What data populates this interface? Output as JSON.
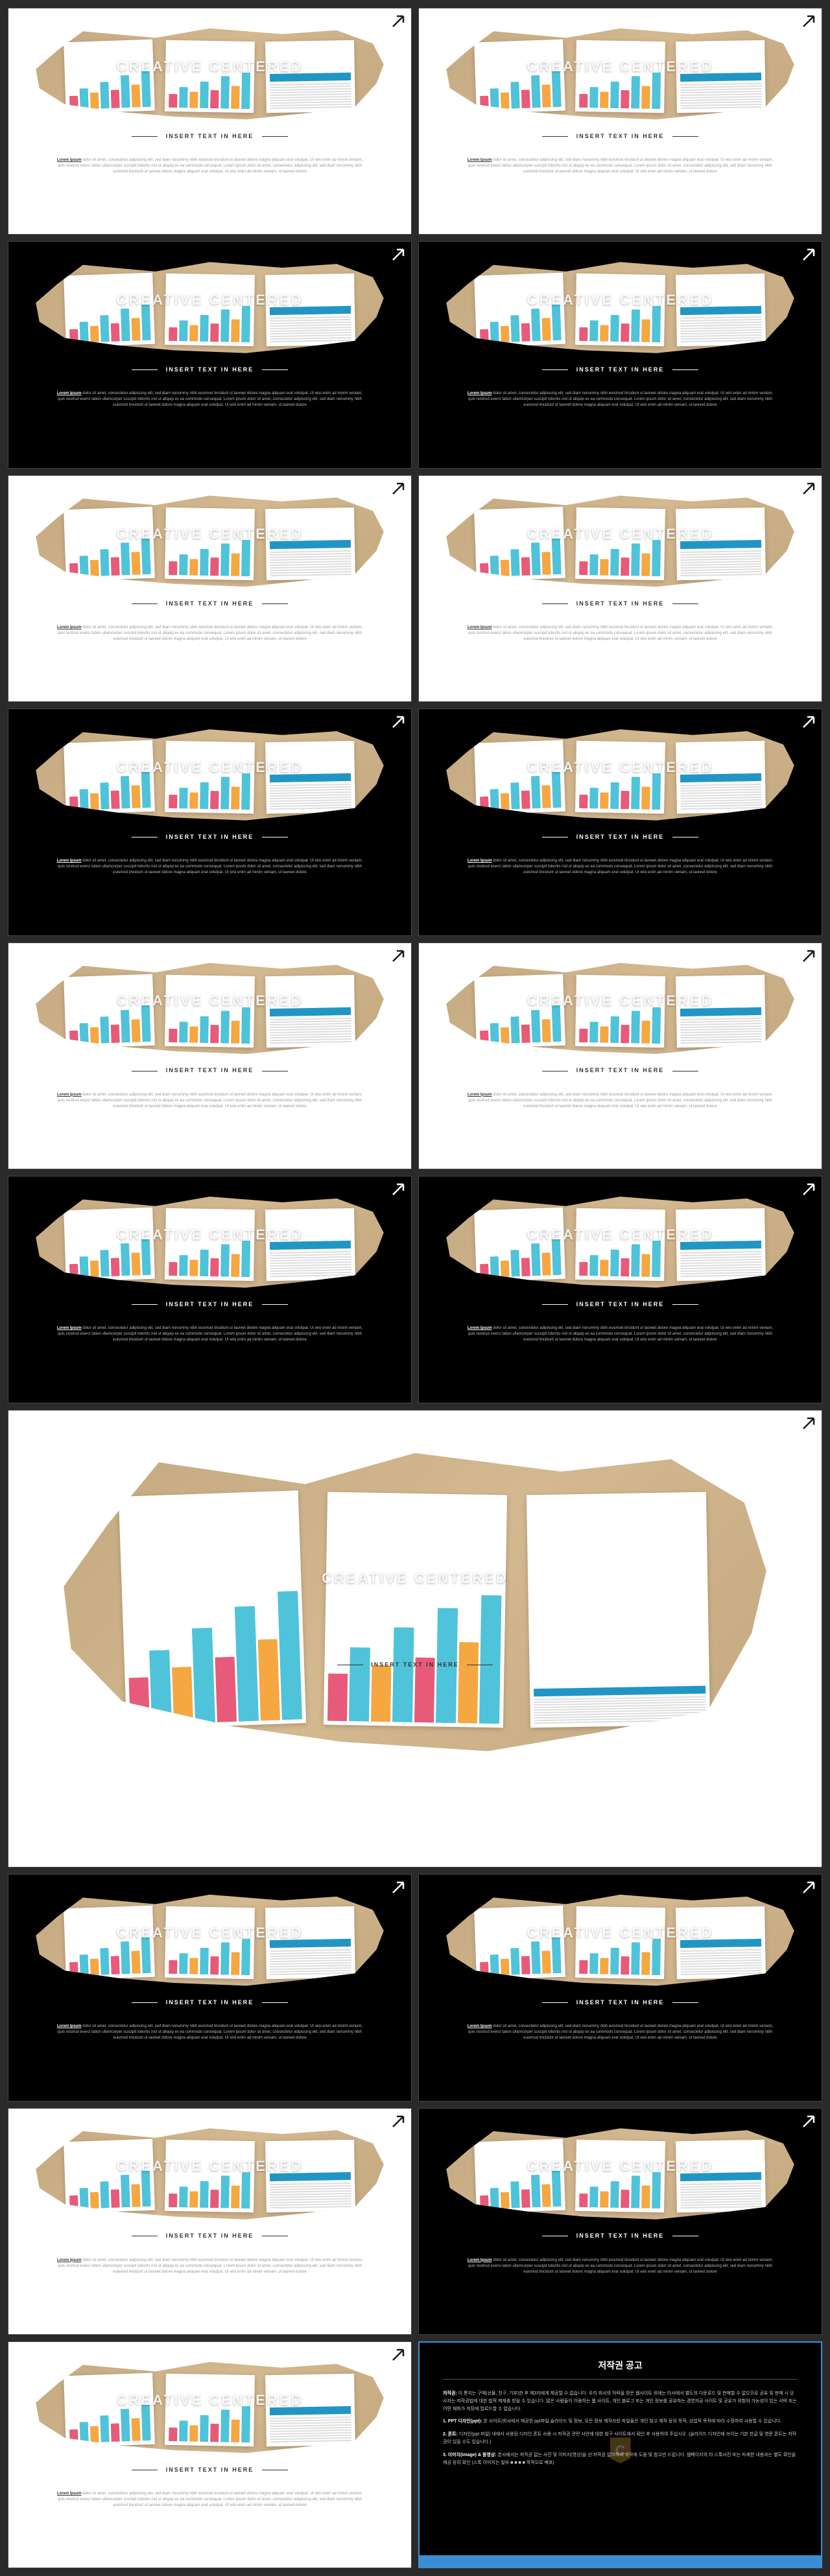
{
  "slide_title": "CREATIVE CENTERED",
  "slide_subtitle": "INSERT TEXT IN HERE",
  "body_lead": "Lorem Ipsum",
  "body_text": "dolor sit amet, consectetur adipiscing elit, sed diam nonummy nibh euismod tincidunt ut laoreet dolore magna aliquam erat volutpat. Ut wisi enim ad minim veniam, quis nostrud exerci tation ullamcorper suscipit lobortis nisl ut aliquip ex ea commodo consequat. Lorem ipsum dolor sit amet, consectetur adipiscing elit, sed diam nonummy nibh euismod tincidunt ut laoreet dolore magna aliquam erat volutpat. Ut wisi enim ad minim veniam, ut laoreet dolore",
  "rows": [
    {
      "type": "pair",
      "left": "light",
      "right": "light"
    },
    {
      "type": "pair",
      "left": "dark",
      "right": "dark"
    },
    {
      "type": "pair",
      "left": "light",
      "right": "light"
    },
    {
      "type": "pair",
      "left": "dark",
      "right": "dark"
    },
    {
      "type": "pair",
      "left": "light",
      "right": "light"
    },
    {
      "type": "pair",
      "left": "dark",
      "right": "dark"
    },
    {
      "type": "full",
      "variant": "light"
    },
    {
      "type": "pair",
      "left": "dark",
      "right": "dark"
    },
    {
      "type": "pair",
      "left": "light",
      "right": "dark"
    },
    {
      "type": "final",
      "left": "light"
    }
  ],
  "chart_bars": [
    {
      "h": 35,
      "c": "#e85a7a"
    },
    {
      "h": 55,
      "c": "#4fc3d9"
    },
    {
      "h": 42,
      "c": "#f5a742"
    },
    {
      "h": 70,
      "c": "#4fc3d9"
    },
    {
      "h": 48,
      "c": "#e85a7a"
    },
    {
      "h": 85,
      "c": "#4fc3d9"
    },
    {
      "h": 60,
      "c": "#f5a742"
    },
    {
      "h": 95,
      "c": "#4fc3d9"
    }
  ],
  "copyright": {
    "title": "저작권 공고",
    "badge": "C",
    "para1_lead": "저작권:",
    "para1": " 이 통지는 구매(선물, 친구, 기부)한 후 제3자에게 제공할 수 없습니다. 우리 회사의 허락을 받은 웹사이트 외에는 타사에서 별도의 다운로드 및 판매할 수 없으므로 공유 및 판매 시 당사자는 저작권법에 대한 법적 제재를 받을 수 있습니다. 많은 사람들이 이용하는 웹 사이트, 개인 블로그 또는 개인 정보를 공유하는 경영자금 사이트 및 공유가 위험의 가능성이 있는 서버 또는 어떤 재화가 저장에 업로드할 수 없습니다.",
    "para2_lead": "1. PPT 디자인(ppt):",
    "para2": " 본 사이트/회사에서 제공한 ppt파일 슬라이드 및 정보, 모든 정보 제작자한 파일들은 개인 참고 제작 등의 목적, 상업적 목적에 따라 수정하여 사용할 수 있습니다.",
    "para3_lead": "2. 폰트:",
    "para3": " 디자인(ppt 파일) 내에서 사용된 디자인 폰트 사용 시 저작권 관련 사안에 대한 참구 사이트에서 확인 후 사용하여 주십시오. (슬라이드 디자인에 쓰이는 기본 한글 및 영문 폰트는 저작권이 있을 수도 있습니다.)",
    "para4_lead": "3. 이미지(image) & 동영상:",
    "para4": " 본사에서는 저작권 없는 사진 및 이미지(영상)을 선 저작권 없이하여 제작에 도움 및 참고만 드립니다. 웹페이지의 타 스톡사진 또는 자세한 내용과는 별도 확인을 제공 등의 확인 (스톡 이미지는 일부 ■ ■ ■ ■ 목적으로 배포)"
  },
  "colors": {
    "page_bg": "#2a2a2a",
    "light_bg": "#ffffff",
    "dark_bg": "#000000",
    "wood": "#c4a980",
    "accent_blue": "#3a8fd4",
    "badge_gold": "#c49a3a",
    "logo_dark": "#1a1a1a",
    "logo_light": "#ffffff"
  }
}
